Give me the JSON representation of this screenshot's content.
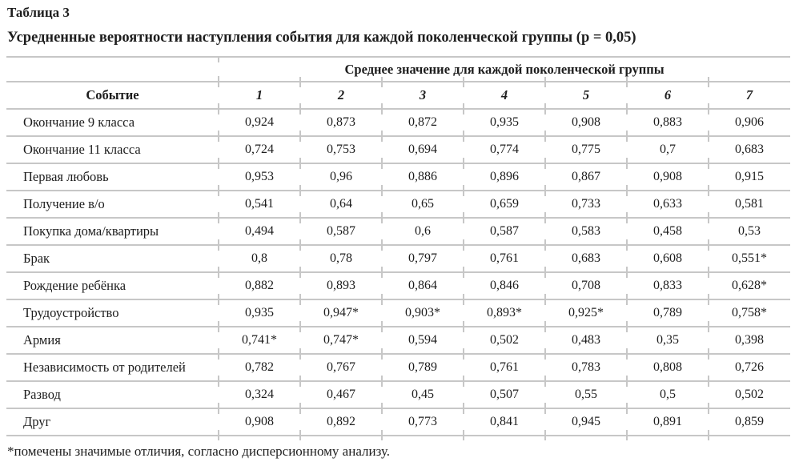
{
  "table_label": "Таблица 3",
  "title": "Усредненные вероятности наступления события для каждой поколенческой группы (p = 0,05)",
  "header": {
    "group_header": "Среднее значение для каждой поколенческой группы",
    "event_col": "Событие",
    "group_cols": [
      "1",
      "2",
      "3",
      "4",
      "5",
      "6",
      "7"
    ]
  },
  "rows": [
    {
      "event": "Окончание 9 класса",
      "values": [
        "0,924",
        "0,873",
        "0,872",
        "0,935",
        "0,908",
        "0,883",
        "0,906"
      ]
    },
    {
      "event": "Окончание 11 класса",
      "values": [
        "0,724",
        "0,753",
        "0,694",
        "0,774",
        "0,775",
        "0,7",
        "0,683"
      ]
    },
    {
      "event": "Первая любовь",
      "values": [
        "0,953",
        "0,96",
        "0,886",
        "0,896",
        "0,867",
        "0,908",
        "0,915"
      ]
    },
    {
      "event": "Получение в/о",
      "values": [
        "0,541",
        "0,64",
        "0,65",
        "0,659",
        "0,733",
        "0,633",
        "0,581"
      ]
    },
    {
      "event": "Покупка дома/квартиры",
      "values": [
        "0,494",
        "0,587",
        "0,6",
        "0,587",
        "0,583",
        "0,458",
        "0,53"
      ]
    },
    {
      "event": "Брак",
      "values": [
        "0,8",
        "0,78",
        "0,797",
        "0,761",
        "0,683",
        "0,608",
        "0,551*"
      ]
    },
    {
      "event": "Рождение ребёнка",
      "values": [
        "0,882",
        "0,893",
        "0,864",
        "0,846",
        "0,708",
        "0,833",
        "0,628*"
      ]
    },
    {
      "event": "Трудоустройство",
      "values": [
        "0,935",
        "0,947*",
        "0,903*",
        "0,893*",
        "0,925*",
        "0,789",
        "0,758*"
      ]
    },
    {
      "event": "Армия",
      "values": [
        "0,741*",
        "0,747*",
        "0,594",
        "0,502",
        "0,483",
        "0,35",
        "0,398"
      ]
    },
    {
      "event": "Независимость от родителей",
      "values": [
        "0,782",
        "0,767",
        "0,789",
        "0,761",
        "0,783",
        "0,808",
        "0,726"
      ]
    },
    {
      "event": "Развод",
      "values": [
        "0,324",
        "0,467",
        "0,45",
        "0,507",
        "0,55",
        "0,5",
        "0,502"
      ]
    },
    {
      "event": "Друг",
      "values": [
        "0,908",
        "0,892",
        "0,773",
        "0,841",
        "0,945",
        "0,891",
        "0,859"
      ]
    }
  ],
  "footnote": "*помечены значимые отличия, согласно дисперсионному анализу.",
  "colors": {
    "rule": "#c7c7c7",
    "text": "#1d1d1d"
  }
}
